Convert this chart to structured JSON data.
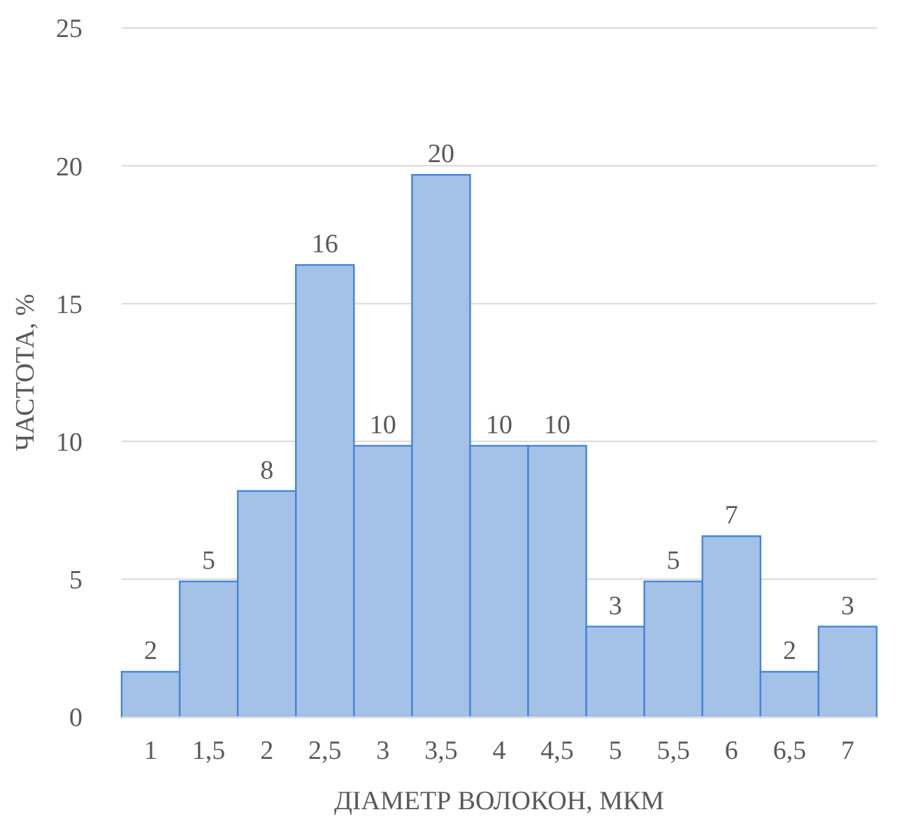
{
  "chart_data": {
    "type": "bar",
    "xlabel": "ДІАМЕТР ВОЛОКОН, МКМ",
    "ylabel": "ЧАСТОТА, %",
    "categories": [
      "1",
      "1,5",
      "2",
      "2,5",
      "3",
      "3,5",
      "4",
      "4,5",
      "5",
      "5,5",
      "6",
      "6,5",
      "7"
    ],
    "values": [
      1.64,
      4.92,
      8.2,
      16.4,
      9.84,
      19.67,
      9.84,
      9.84,
      3.28,
      4.92,
      6.56,
      1.64,
      3.28
    ],
    "value_labels": [
      "2",
      "5",
      "8",
      "16",
      "10",
      "20",
      "10",
      "10",
      "3",
      "5",
      "7",
      "2",
      "3"
    ],
    "color": "#a4c2e8",
    "ylim": [
      0,
      25
    ],
    "yticks": [
      0,
      5,
      10,
      15,
      20,
      25
    ],
    "grid": "y"
  }
}
